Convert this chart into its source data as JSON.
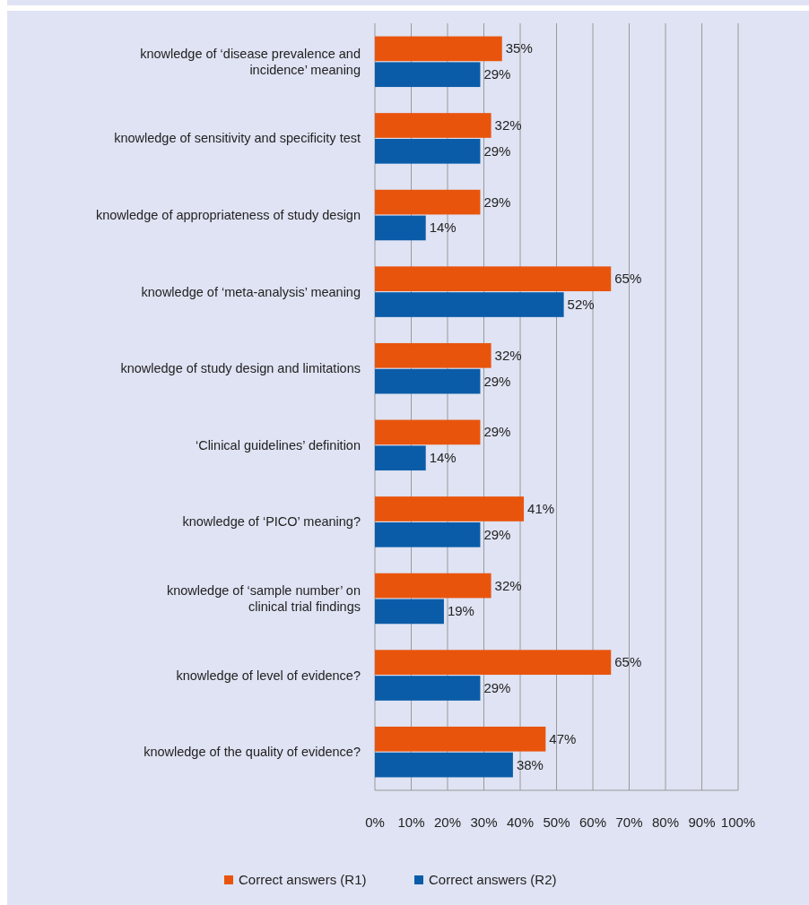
{
  "chart_data": {
    "type": "bar",
    "orientation": "horizontal",
    "categories": [
      "knowledge of ‘disease prevalence and\nincidence’ meaning",
      "knowledge of sensitivity and specificity test",
      "knowledge of appropriateness of study design",
      "knowledge of ‘meta-analysis’ meaning",
      "knowledge of study design and limitations",
      "‘Clinical guidelines’ definition",
      "knowledge of ‘PICO’ meaning?",
      "knowledge of ‘sample number’ on\nclinical trial findings",
      "knowledge of level of evidence?",
      "knowledge of the quality of evidence?"
    ],
    "series": [
      {
        "name": "Correct answers (R1)",
        "color": "#e9540d",
        "values": [
          35,
          32,
          29,
          65,
          32,
          29,
          41,
          32,
          65,
          47
        ],
        "value_labels": [
          "35%",
          "32%",
          "29%",
          "65%",
          "32%",
          "29%",
          "41%",
          "32%",
          "65%",
          "47%"
        ]
      },
      {
        "name": "Correct answers (R2)",
        "color": "#0b5ca8",
        "values": [
          29,
          29,
          14,
          52,
          29,
          14,
          29,
          19,
          29,
          38
        ],
        "value_labels": [
          "29%",
          "29%",
          "14%",
          "52%",
          "29%",
          "14%",
          "29%",
          "19%",
          "29%",
          "38%"
        ]
      }
    ],
    "xlim": [
      0,
      100
    ],
    "xticks": [
      {
        "value": 0,
        "label": "0%"
      },
      {
        "value": 10,
        "label": "10%"
      },
      {
        "value": 20,
        "label": "20%"
      },
      {
        "value": 30,
        "label": "30%"
      },
      {
        "value": 40,
        "label": "40%"
      },
      {
        "value": 50,
        "label": "50%"
      },
      {
        "value": 60,
        "label": "60%"
      },
      {
        "value": 70,
        "label": "70%"
      },
      {
        "value": 80,
        "label": "80%"
      },
      {
        "value": 90,
        "label": "90%"
      },
      {
        "value": 100,
        "label": "100%"
      }
    ],
    "grid": "x",
    "legend": "bottom"
  }
}
